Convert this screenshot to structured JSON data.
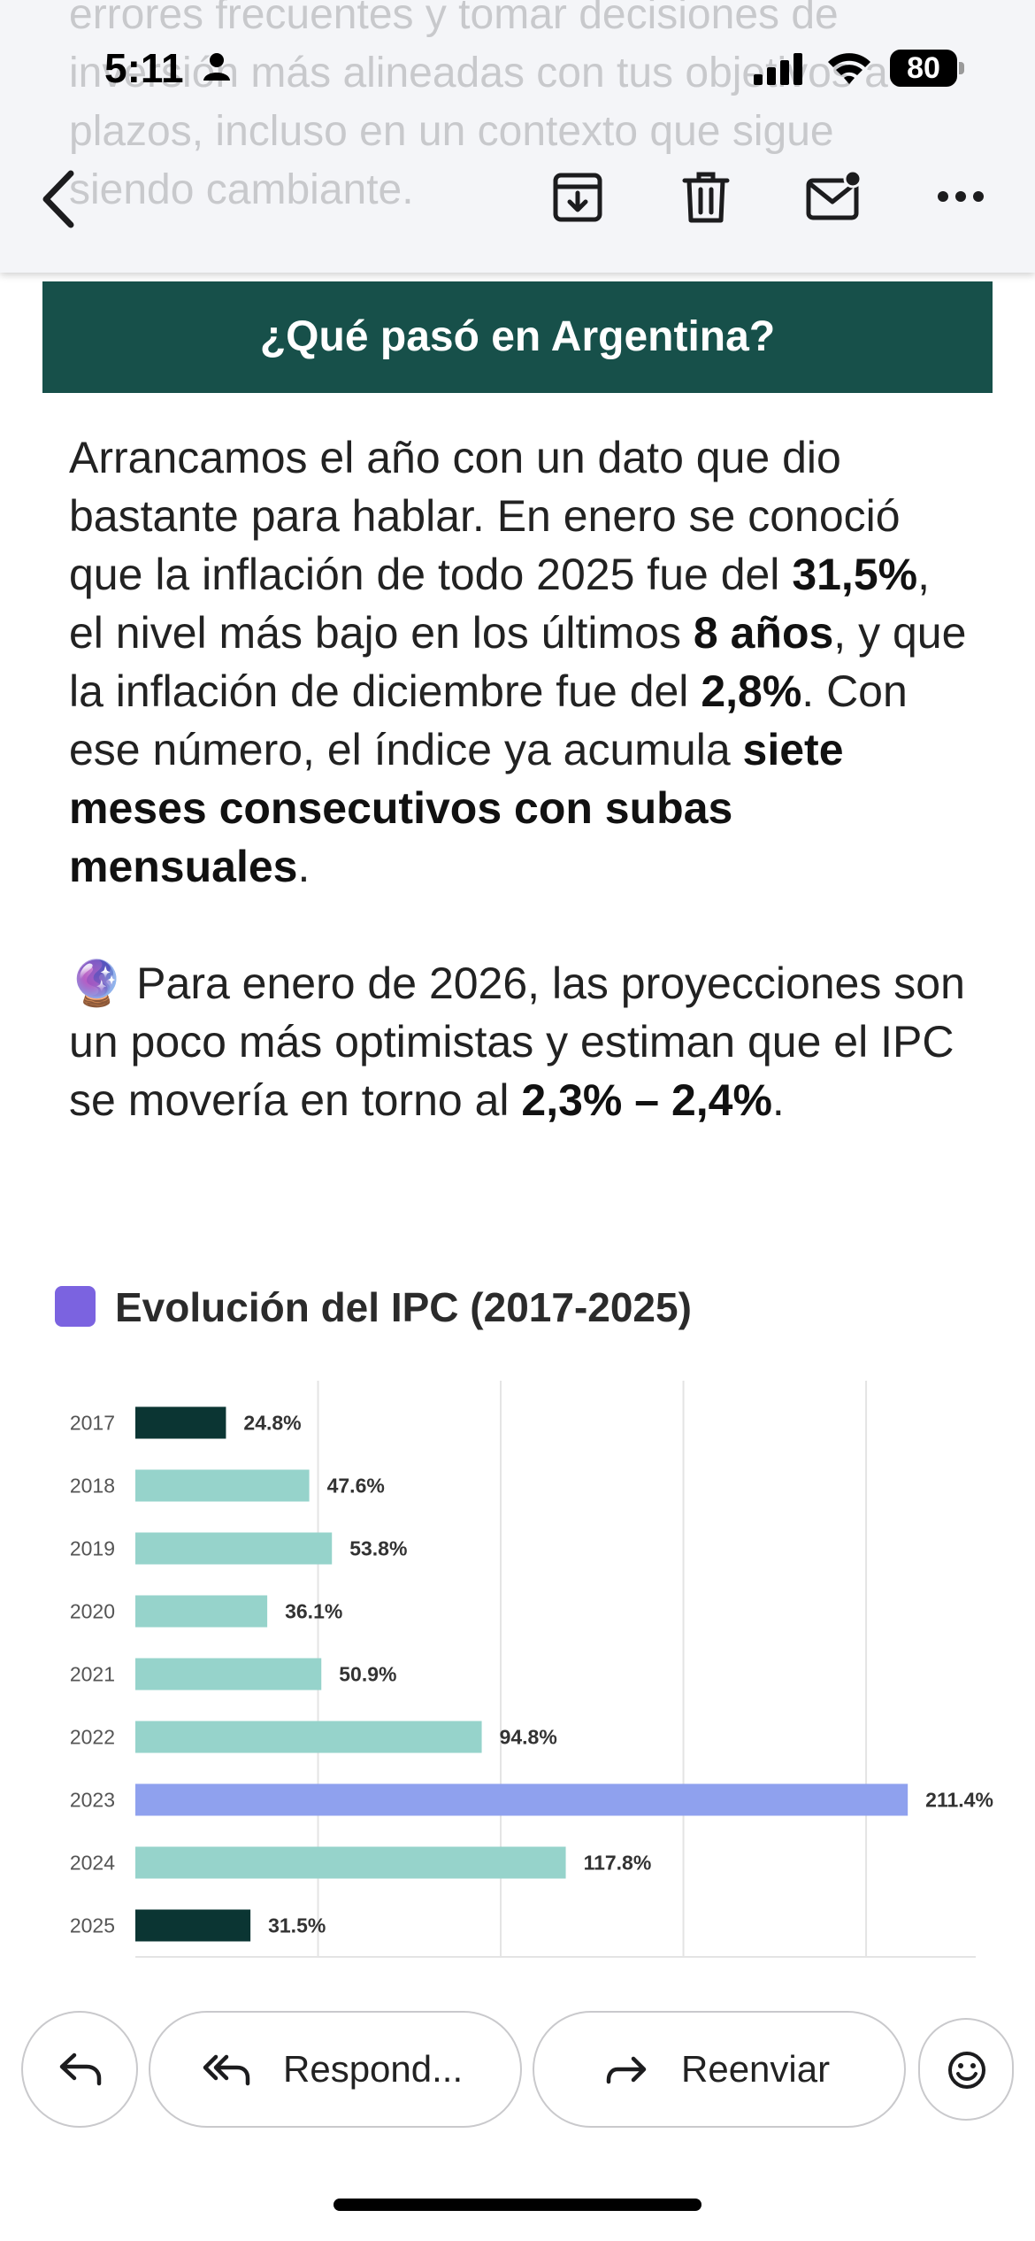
{
  "status_bar": {
    "time": "5:11",
    "battery": "80"
  },
  "ghost_text": "errores frecuentes y tomar decisiones de\ninversión más alineadas con tus objetivos a\nplazos, incluso en un contexto que sigue\nsiendo cambiante.",
  "section_title": "¿Qué pasó en Argentina?",
  "paragraph1": {
    "t1": "Arrancamos el año con un dato que dio bastante para hablar. En enero se conoció que la inflación de todo 2025 fue del ",
    "b1": "31,5%",
    "t2": ", el nivel más bajo en los últimos ",
    "b2": "8 años",
    "t3": ", y que la inflación de diciembre fue del ",
    "b3": "2,8%",
    "t4": ". Con ese número, el índice ya acumula ",
    "b4": "siete meses consecutivos con subas mensuales",
    "t5": "."
  },
  "paragraph2": {
    "emoji": "🔮",
    "t1": " Para enero de 2026, las proyecciones son un poco más optimistas y estiman que el IPC se movería en torno al ",
    "b1": "2,3% – 2,4%",
    "t2": "."
  },
  "chart_title": "Evolución del IPC (2017-2025)",
  "chart_data": {
    "type": "bar",
    "orientation": "horizontal",
    "title": "Evolución del IPC (2017-2025)",
    "categories": [
      "2017",
      "2018",
      "2019",
      "2020",
      "2021",
      "2022",
      "2023",
      "2024",
      "2025"
    ],
    "values": [
      24.8,
      47.6,
      53.8,
      36.1,
      50.9,
      94.8,
      211.4,
      117.8,
      31.5
    ],
    "value_labels": [
      "24.8%",
      "47.6%",
      "53.8%",
      "36.1%",
      "50.9%",
      "94.8%",
      "211.4%",
      "117.8%",
      "31.5%"
    ],
    "bar_colors": [
      "#0b3533",
      "#96d3cb",
      "#96d3cb",
      "#96d3cb",
      "#96d3cb",
      "#96d3cb",
      "#8fa1ee",
      "#96d3cb",
      "#0b3533"
    ],
    "xlim": [
      0,
      230
    ],
    "grid": true
  },
  "actions": {
    "reply_all": "Respond...",
    "forward": "Reenviar"
  },
  "colors": {
    "header_bg": "#17504a",
    "accent_purple": "#7b63e0"
  }
}
